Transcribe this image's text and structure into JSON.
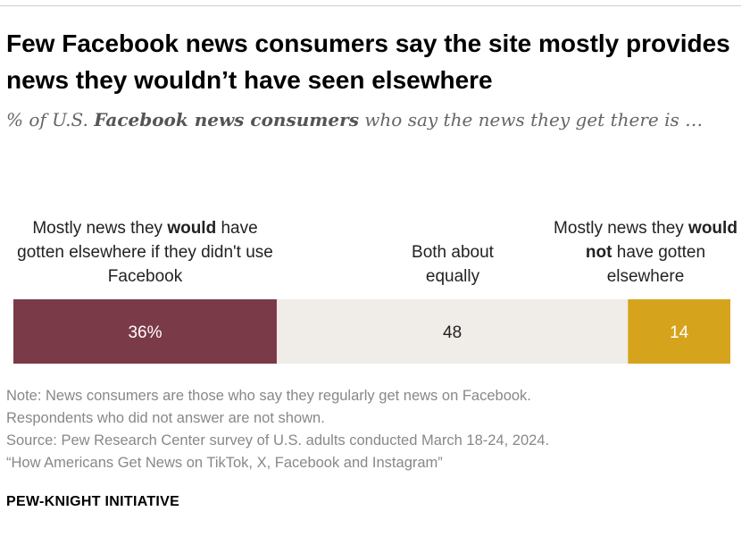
{
  "title": "Few Facebook news consumers say the site mostly provides news they wouldn’t have seen elsewhere",
  "subtitle": {
    "prefix": "% of U.S. ",
    "bold": "Facebook news consumers",
    "suffix": " who say the news they get there is …"
  },
  "chart_data": {
    "type": "bar",
    "orientation": "horizontal-stacked",
    "series": [
      {
        "name": "Mostly news they would have gotten elsewhere if they didn't use Facebook",
        "label_parts": [
          "Mostly news they ",
          "would",
          " have gotten elsewhere if they didn't use Facebook"
        ],
        "value": 36,
        "display": "36%",
        "color": "#7b3a48",
        "text_color": "#ffffff"
      },
      {
        "name": "Both about equally",
        "label_parts": [
          "Both about equally"
        ],
        "value": 48,
        "display": "48",
        "color": "#f0ede8",
        "text_color": "#222222"
      },
      {
        "name": "Mostly news they would not have gotten elsewhere",
        "label_parts": [
          "Mostly news they ",
          "would not",
          " have gotten elsewhere"
        ],
        "value": 14,
        "display": "14",
        "color": "#d6a31c",
        "text_color": "#ffffff"
      }
    ],
    "total": 98
  },
  "notes": {
    "note_line1": "Note: News consumers are those who say they regularly get news on Facebook.",
    "note_line2": "Respondents who did not answer are not shown.",
    "source_line1": "Source: Pew Research Center survey of U.S. adults conducted March 18-24, 2024.",
    "source_line2": "“How Americans Get News on TikTok, X, Facebook and Instagram”"
  },
  "brand": "PEW-KNIGHT INITIATIVE"
}
